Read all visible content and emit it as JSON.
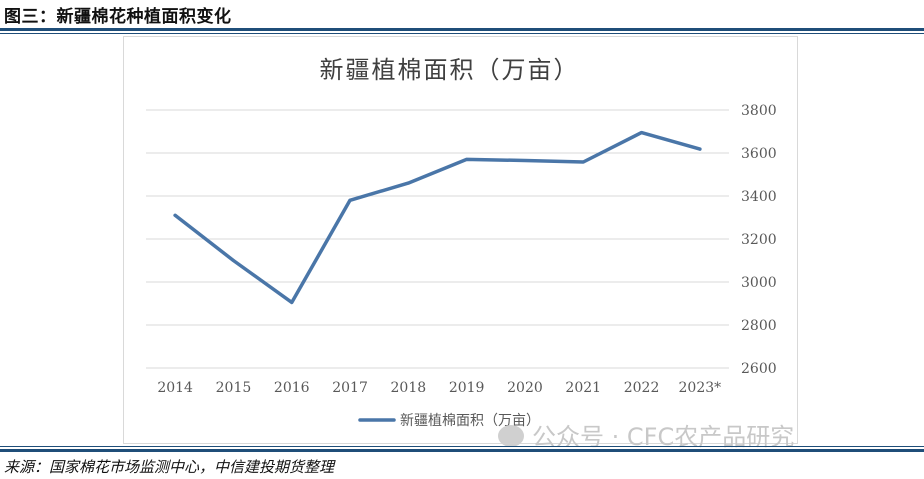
{
  "figure": {
    "heading": "图三：新疆棉花种植面积变化",
    "source": "来源：国家棉花市场监测中心，中信建投期货整理",
    "watermark": "公众号 · CFC农产品研究"
  },
  "chart_data": {
    "type": "line",
    "title": "新疆植棉面积（万亩）",
    "categories": [
      "2014",
      "2015",
      "2016",
      "2017",
      "2018",
      "2019",
      "2020",
      "2021",
      "2022",
      "2023*"
    ],
    "series": [
      {
        "name": "新疆植棉面积（万亩）",
        "values": [
          3310,
          3100,
          2905,
          3380,
          3460,
          3570,
          3565,
          3558,
          3695,
          3618
        ],
        "color": "#4a76a8"
      }
    ],
    "ylim": [
      2600,
      3800
    ],
    "yticks": [
      2600,
      2800,
      3000,
      3200,
      3400,
      3600,
      3800
    ],
    "y_axis_position": "right",
    "grid": true,
    "legend": "bottom"
  }
}
